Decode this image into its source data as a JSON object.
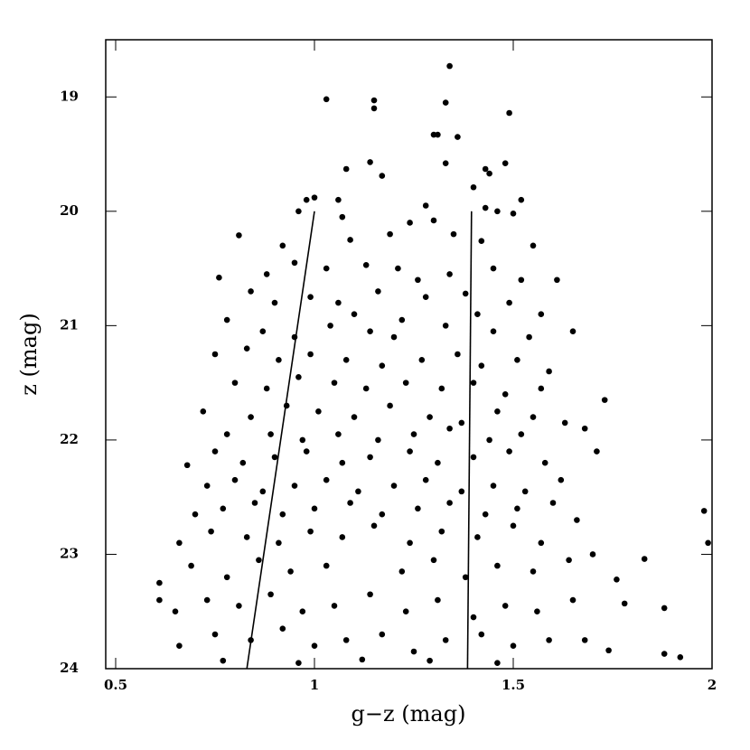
{
  "chart_data": {
    "type": "scatter",
    "x_label": "g−z (mag)",
    "y_label": "z (mag)",
    "xlim": [
      0.475,
      2
    ],
    "ylim": [
      24,
      18.5
    ],
    "xticks": [
      0.5,
      1,
      1.5,
      2
    ],
    "yticks": [
      19,
      20,
      21,
      22,
      23,
      24
    ],
    "series": [
      {
        "color": "#000000",
        "x": [
          1.34,
          1.03,
          1.15,
          1.15,
          1.33,
          1.49,
          1.3,
          1.31,
          1.36,
          1.33,
          1.48,
          1.14,
          1.08,
          1.17,
          1.43,
          1.44,
          1.4,
          1.52,
          1.0,
          0.98,
          1.06,
          1.43,
          1.28,
          0.96,
          1.07,
          1.24,
          1.3,
          1.46,
          1.5,
          0.81,
          0.92,
          1.09,
          1.19,
          1.35,
          1.42,
          1.55,
          0.76,
          0.88,
          0.95,
          1.03,
          1.13,
          1.21,
          1.26,
          1.34,
          1.45,
          1.52,
          1.61,
          0.84,
          0.9,
          0.99,
          1.06,
          1.16,
          1.28,
          1.38,
          1.49,
          1.57,
          0.78,
          1.1,
          1.22,
          1.41,
          0.87,
          0.95,
          1.04,
          1.14,
          1.2,
          1.33,
          1.45,
          1.54,
          1.65,
          0.75,
          0.83,
          0.91,
          0.99,
          1.08,
          1.17,
          1.27,
          1.36,
          1.42,
          1.51,
          1.59,
          0.8,
          0.88,
          0.96,
          1.05,
          1.13,
          1.23,
          1.32,
          1.4,
          1.48,
          1.57,
          1.73,
          0.72,
          0.84,
          0.93,
          1.01,
          1.1,
          1.19,
          1.29,
          1.37,
          1.46,
          1.55,
          1.63,
          0.78,
          0.89,
          0.97,
          1.06,
          1.16,
          1.25,
          1.34,
          1.44,
          1.52,
          1.68,
          0.68,
          0.75,
          0.82,
          0.9,
          0.98,
          1.07,
          1.14,
          1.24,
          1.31,
          1.4,
          1.49,
          1.58,
          1.71,
          0.73,
          0.8,
          0.87,
          0.95,
          1.03,
          1.11,
          1.2,
          1.28,
          1.37,
          1.45,
          1.53,
          1.62,
          0.7,
          0.77,
          0.85,
          0.92,
          1.0,
          1.09,
          1.17,
          1.26,
          1.34,
          1.43,
          1.51,
          1.6,
          1.66,
          0.66,
          0.74,
          0.83,
          0.91,
          0.99,
          1.07,
          1.15,
          1.24,
          1.32,
          1.41,
          1.5,
          1.57,
          1.98,
          1.99,
          0.61,
          0.69,
          0.78,
          0.86,
          0.94,
          1.03,
          1.22,
          1.3,
          1.38,
          1.46,
          1.55,
          1.64,
          1.7,
          1.76,
          1.83,
          0.65,
          0.73,
          0.81,
          0.89,
          0.97,
          1.05,
          1.14,
          1.23,
          1.31,
          1.4,
          1.48,
          1.56,
          1.65,
          1.78,
          0.66,
          0.75,
          0.84,
          0.92,
          1.0,
          1.08,
          1.17,
          1.25,
          1.33,
          1.42,
          1.5,
          1.59,
          1.68,
          1.74,
          1.88,
          1.92,
          0.77,
          0.96,
          1.12,
          1.29,
          1.46,
          0.61,
          1.88
        ],
        "y": [
          18.73,
          19.02,
          19.03,
          19.1,
          19.05,
          19.14,
          19.33,
          19.33,
          19.35,
          19.58,
          19.58,
          19.57,
          19.63,
          19.69,
          19.63,
          19.67,
          19.79,
          19.9,
          19.88,
          19.9,
          19.9,
          19.97,
          19.95,
          20.0,
          20.05,
          20.1,
          20.08,
          20.0,
          20.02,
          20.21,
          20.3,
          20.25,
          20.2,
          20.2,
          20.26,
          20.3,
          20.58,
          20.55,
          20.45,
          20.5,
          20.47,
          20.5,
          20.6,
          20.55,
          20.5,
          20.6,
          20.6,
          20.7,
          20.8,
          20.75,
          20.8,
          20.7,
          20.75,
          20.72,
          20.8,
          20.9,
          20.95,
          20.9,
          20.95,
          20.9,
          21.05,
          21.1,
          21.0,
          21.05,
          21.1,
          21.0,
          21.05,
          21.1,
          21.05,
          21.25,
          21.2,
          21.3,
          21.25,
          21.3,
          21.35,
          21.3,
          21.25,
          21.35,
          21.3,
          21.4,
          21.5,
          21.55,
          21.45,
          21.5,
          21.55,
          21.5,
          21.55,
          21.5,
          21.6,
          21.55,
          21.65,
          21.75,
          21.8,
          21.7,
          21.75,
          21.8,
          21.7,
          21.8,
          21.85,
          21.75,
          21.8,
          21.85,
          21.95,
          21.95,
          22.0,
          21.95,
          22.0,
          21.95,
          21.9,
          22.0,
          21.95,
          21.9,
          22.22,
          22.1,
          22.2,
          22.15,
          22.1,
          22.2,
          22.15,
          22.1,
          22.2,
          22.15,
          22.1,
          22.2,
          22.1,
          22.4,
          22.35,
          22.45,
          22.4,
          22.35,
          22.45,
          22.4,
          22.35,
          22.45,
          22.4,
          22.45,
          22.35,
          22.65,
          22.6,
          22.55,
          22.65,
          22.6,
          22.55,
          22.65,
          22.6,
          22.55,
          22.65,
          22.6,
          22.55,
          22.7,
          22.9,
          22.8,
          22.85,
          22.9,
          22.8,
          22.85,
          22.75,
          22.9,
          22.8,
          22.85,
          22.75,
          22.9,
          22.62,
          22.9,
          23.25,
          23.1,
          23.2,
          23.05,
          23.15,
          23.1,
          23.15,
          23.05,
          23.2,
          23.1,
          23.15,
          23.05,
          23.0,
          23.22,
          23.04,
          23.5,
          23.4,
          23.45,
          23.35,
          23.5,
          23.45,
          23.35,
          23.5,
          23.4,
          23.55,
          23.45,
          23.5,
          23.4,
          23.43,
          23.8,
          23.7,
          23.75,
          23.65,
          23.8,
          23.75,
          23.7,
          23.85,
          23.75,
          23.7,
          23.8,
          23.75,
          23.75,
          23.84,
          23.87,
          23.9,
          23.93,
          23.95,
          23.92,
          23.93,
          23.95,
          23.4,
          23.47
        ]
      }
    ],
    "lines": [
      {
        "color": "#000000",
        "x": [
          1.0,
          0.83
        ],
        "y": [
          20,
          24
        ]
      },
      {
        "color": "#000000",
        "x": [
          1.395,
          1.385
        ],
        "y": [
          20,
          24
        ]
      }
    ]
  }
}
